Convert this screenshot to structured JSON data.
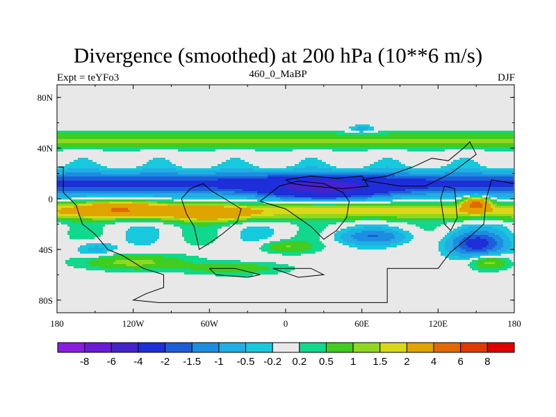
{
  "chart_data": {
    "type": "filled-contour-map",
    "title": "Divergence (smoothed) at 200 hPa (10**6 m/s)",
    "left_label": "Expt = teYFo3",
    "center_label": "460_0_MaBP",
    "right_label": "DJF",
    "x_ticks": [
      {
        "value": -180,
        "label": "180"
      },
      {
        "value": -120,
        "label": "120W"
      },
      {
        "value": -60,
        "label": "60W"
      },
      {
        "value": 0,
        "label": "0"
      },
      {
        "value": 60,
        "label": "60E"
      },
      {
        "value": 120,
        "label": "120E"
      },
      {
        "value": 180,
        "label": "180"
      }
    ],
    "y_ticks": [
      {
        "value": 80,
        "label": "80N"
      },
      {
        "value": 40,
        "label": "40N"
      },
      {
        "value": 0,
        "label": "0"
      },
      {
        "value": -40,
        "label": "40S"
      },
      {
        "value": -80,
        "label": "80S"
      }
    ],
    "lon_range": [
      -180,
      180
    ],
    "lat_range": [
      -90,
      90
    ],
    "contour_levels": [
      "-8",
      "-6",
      "-4",
      "-2",
      "-1.5",
      "-1",
      "-0.5",
      "-0.2",
      "0.2",
      "0.5",
      "1",
      "1.5",
      "2",
      "4",
      "6",
      "8"
    ],
    "colors": [
      "#8a1ce0",
      "#6a1ad6",
      "#4422cc",
      "#1e2ed8",
      "#1c5ed8",
      "#1c8ee0",
      "#20aee4",
      "#18c8dc",
      "#e8e8e8",
      "#10d88c",
      "#40cc20",
      "#90d820",
      "#d8d818",
      "#e0a400",
      "#e06a00",
      "#e03a00",
      "#e00000"
    ],
    "features": [
      {
        "kind": "band",
        "lat": 12,
        "lon_min": -180,
        "lon_max": 180,
        "amp": -2.2,
        "sigma_lat": 9
      },
      {
        "kind": "band",
        "lat": 46,
        "lon_min": -180,
        "lon_max": 180,
        "amp": 1.1,
        "sigma_lat": 6
      },
      {
        "kind": "band",
        "lat": -10,
        "lon_min": -180,
        "lon_max": 180,
        "amp": 1.8,
        "sigma_lat": 6
      },
      {
        "kind": "blob",
        "lon": 30,
        "lat": 8,
        "amp": -3.2,
        "sigma_lon": 45,
        "sigma_lat": 8
      },
      {
        "kind": "blob",
        "lon": 150,
        "lat": -4,
        "amp": 4.2,
        "sigma_lon": 10,
        "sigma_lat": 5
      },
      {
        "kind": "blob",
        "lon": -130,
        "lat": -8,
        "amp": 2.5,
        "sigma_lon": 35,
        "sigma_lat": 6
      },
      {
        "kind": "blob",
        "lon": -60,
        "lat": -12,
        "amp": 2.2,
        "sigma_lon": 30,
        "sigma_lat": 6
      },
      {
        "kind": "blob",
        "lon": 150,
        "lat": -36,
        "amp": -2.2,
        "sigma_lon": 22,
        "sigma_lat": 10
      },
      {
        "kind": "blob",
        "lon": 160,
        "lat": -50,
        "amp": 1.3,
        "sigma_lon": 15,
        "sigma_lat": 6
      },
      {
        "kind": "blob",
        "lon": -120,
        "lat": -50,
        "amp": 1.2,
        "sigma_lon": 40,
        "sigma_lat": 6
      },
      {
        "kind": "blob",
        "lon": -40,
        "lat": -55,
        "amp": 0.8,
        "sigma_lon": 40,
        "sigma_lat": 5
      },
      {
        "kind": "blob",
        "lon": 60,
        "lat": 55,
        "amp": -0.8,
        "sigma_lon": 10,
        "sigma_lat": 3
      },
      {
        "kind": "blob",
        "lon": -150,
        "lat": -40,
        "amp": -0.8,
        "sigma_lon": 15,
        "sigma_lat": 6
      },
      {
        "kind": "blob",
        "lon": 70,
        "lat": -30,
        "amp": -1.2,
        "sigma_lon": 30,
        "sigma_lat": 6
      },
      {
        "kind": "blob",
        "lon": 0,
        "lat": -38,
        "amp": 1.0,
        "sigma_lon": 20,
        "sigma_lat": 5
      }
    ],
    "continent_outline": [
      [
        [
          -180,
          25
        ],
        [
          -175,
          25
        ],
        [
          -175,
          5
        ],
        [
          -165,
          -5
        ],
        [
          -160,
          -20
        ],
        [
          -150,
          -28
        ],
        [
          -140,
          -40
        ],
        [
          -128,
          -45
        ],
        [
          -112,
          -55
        ],
        [
          -96,
          -60
        ],
        [
          -96,
          -70
        ],
        [
          -110,
          -75
        ],
        [
          -120,
          -80
        ],
        [
          -100,
          -82
        ],
        [
          80,
          -82
        ],
        [
          80,
          -55
        ],
        [
          120,
          -55
        ],
        [
          130,
          -42
        ],
        [
          145,
          -30
        ],
        [
          156,
          -20
        ],
        [
          158,
          0
        ],
        [
          162,
          15
        ],
        [
          180,
          12
        ]
      ],
      [
        [
          -58,
          6
        ],
        [
          -48,
          0
        ],
        [
          -35,
          -8
        ],
        [
          -38,
          -18
        ],
        [
          -50,
          -28
        ],
        [
          -60,
          -35
        ],
        [
          -68,
          -40
        ],
        [
          -72,
          -22
        ],
        [
          -78,
          -12
        ],
        [
          -82,
          0
        ],
        [
          -75,
          8
        ],
        [
          -65,
          12
        ],
        [
          -58,
          6
        ]
      ],
      [
        [
          -20,
          -2
        ],
        [
          0,
          -8
        ],
        [
          10,
          -15
        ],
        [
          20,
          -22
        ],
        [
          30,
          -32
        ],
        [
          40,
          -25
        ],
        [
          48,
          -15
        ],
        [
          50,
          -2
        ],
        [
          45,
          5
        ],
        [
          30,
          12
        ],
        [
          10,
          14
        ],
        [
          -5,
          10
        ],
        [
          -20,
          -2
        ]
      ],
      [
        [
          0,
          15
        ],
        [
          20,
          18
        ],
        [
          40,
          16
        ],
        [
          60,
          18
        ],
        [
          65,
          10
        ],
        [
          45,
          8
        ],
        [
          20,
          10
        ],
        [
          5,
          12
        ],
        [
          0,
          15
        ]
      ],
      [
        [
          60,
          15
        ],
        [
          80,
          18
        ],
        [
          100,
          25
        ],
        [
          115,
          32
        ],
        [
          128,
          30
        ],
        [
          140,
          40
        ],
        [
          145,
          45
        ],
        [
          150,
          35
        ],
        [
          130,
          20
        ],
        [
          110,
          10
        ],
        [
          90,
          10
        ],
        [
          60,
          15
        ]
      ],
      [
        [
          125,
          10
        ],
        [
          133,
          8
        ],
        [
          135,
          -15
        ],
        [
          130,
          -25
        ],
        [
          125,
          -20
        ],
        [
          122,
          0
        ],
        [
          125,
          10
        ]
      ],
      [
        [
          -60,
          -55
        ],
        [
          -40,
          -55
        ],
        [
          -20,
          -60
        ],
        [
          -30,
          -62
        ],
        [
          -55,
          -60
        ],
        [
          -60,
          -55
        ]
      ],
      [
        [
          -10,
          -55
        ],
        [
          20,
          -55
        ],
        [
          30,
          -60
        ],
        [
          10,
          -62
        ],
        [
          -10,
          -55
        ]
      ]
    ]
  },
  "colorbar": {
    "labels": [
      "-8",
      "-6",
      "-4",
      "-2",
      "-1.5",
      "-1",
      "-0.5",
      "-0.2",
      "0.2",
      "0.5",
      "1",
      "1.5",
      "2",
      "4",
      "6",
      "8"
    ]
  }
}
